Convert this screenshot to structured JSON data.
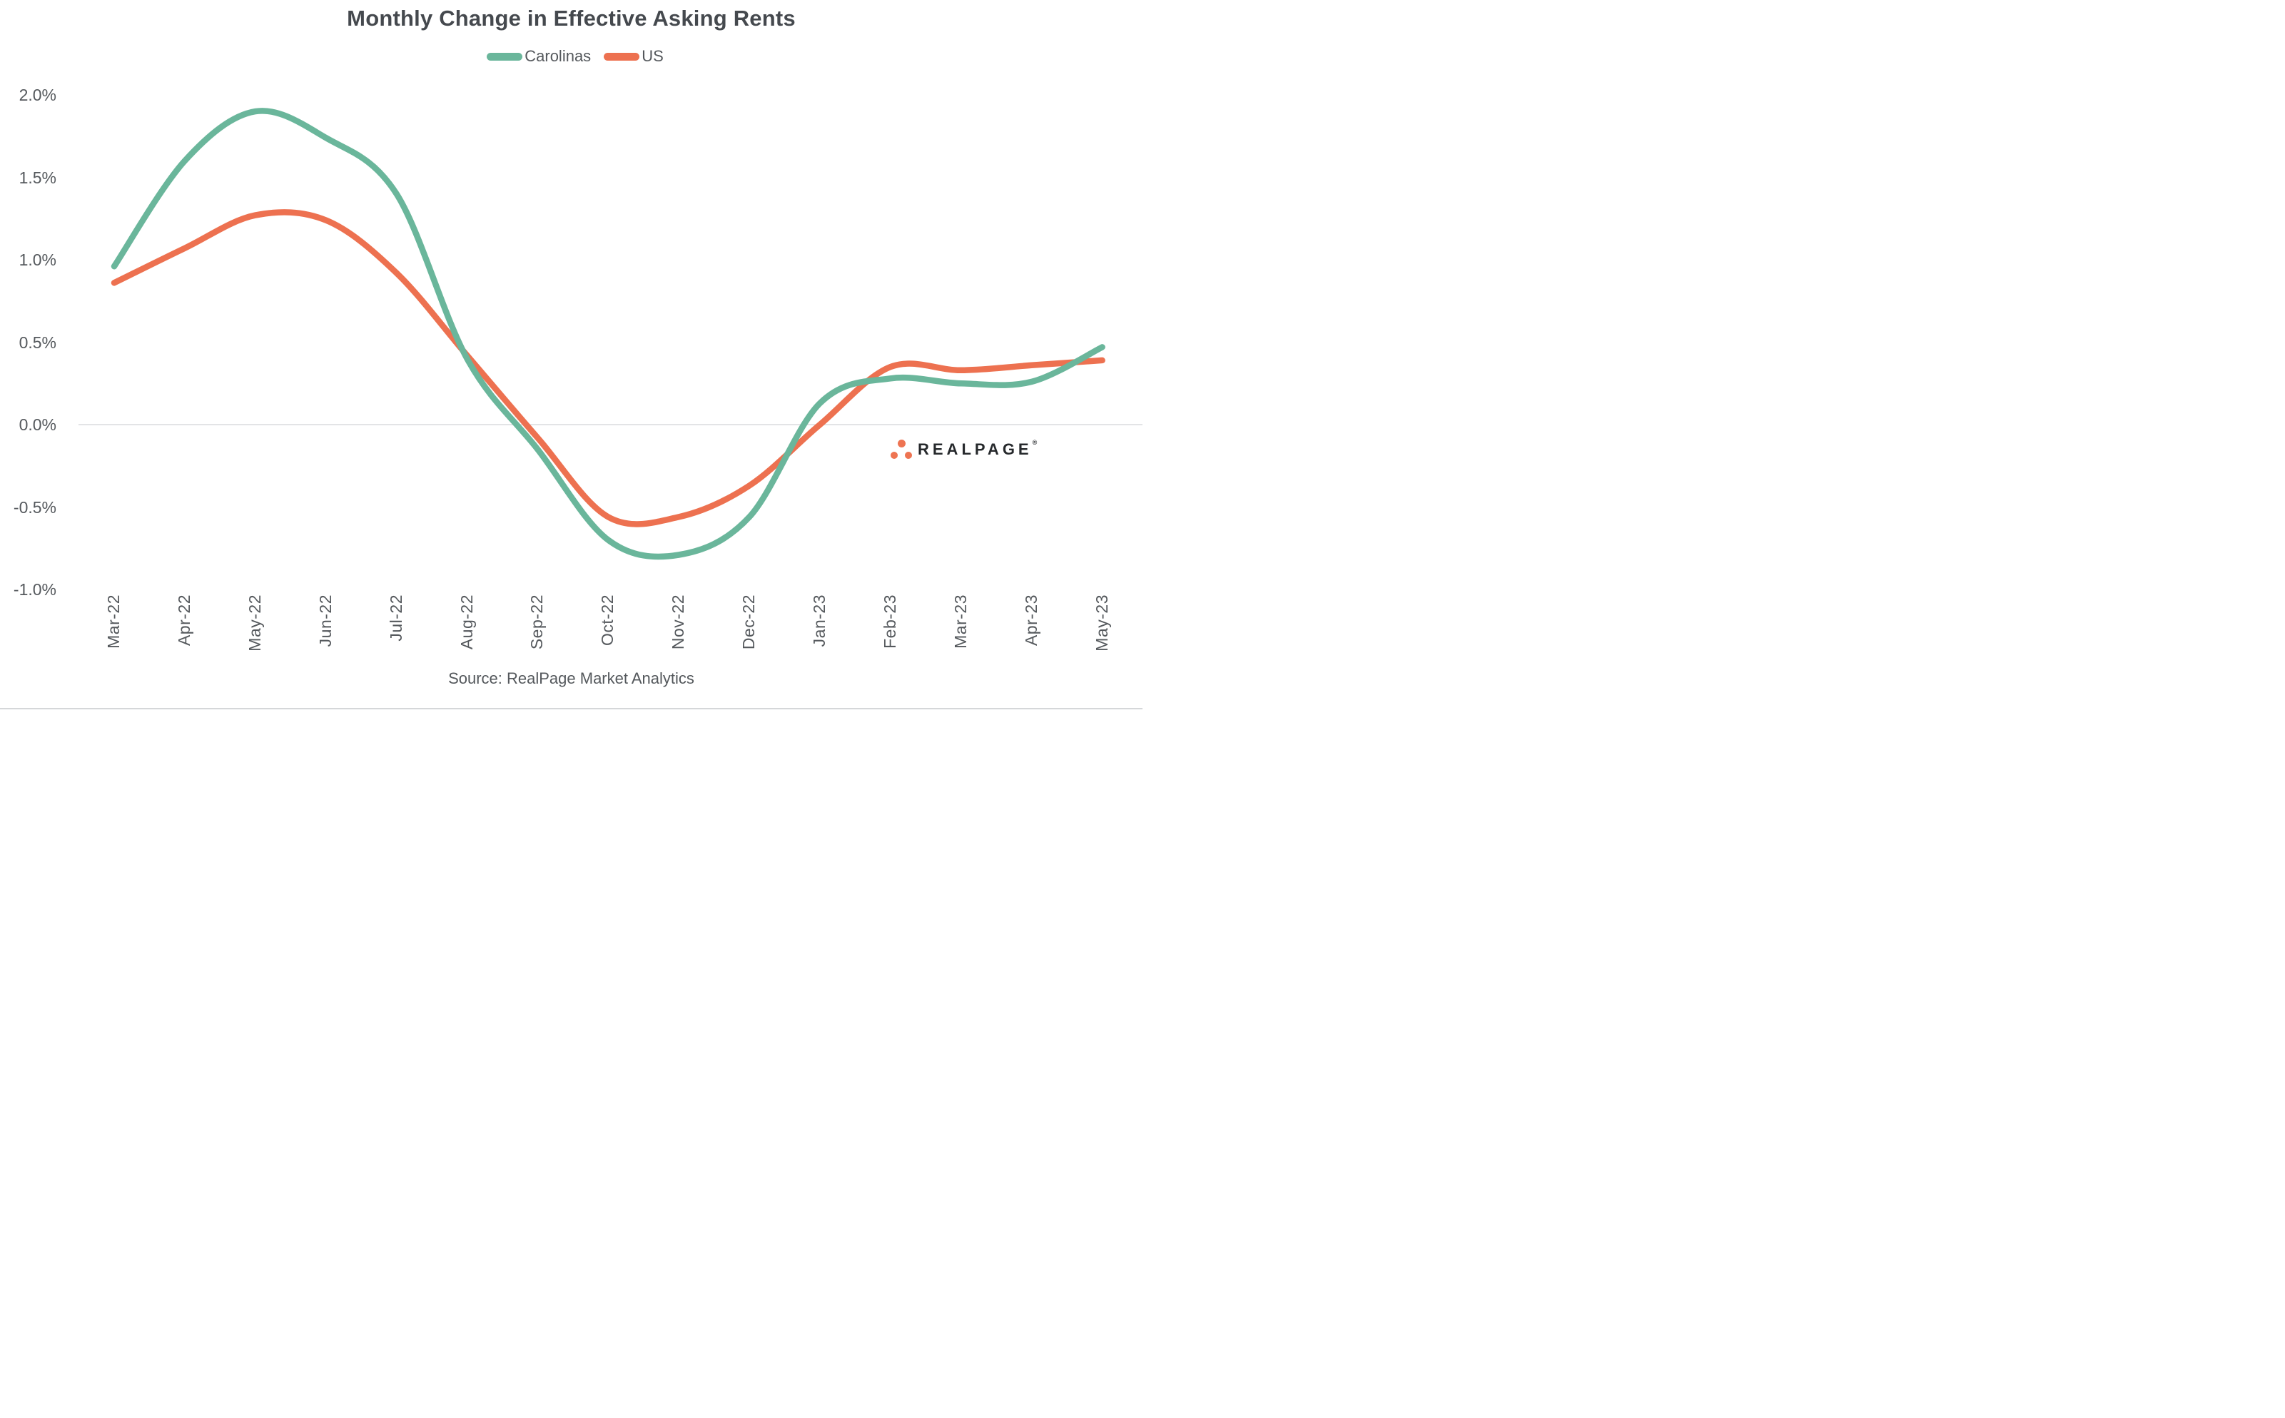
{
  "title": "Monthly Change in Effective Asking Rents",
  "legend": [
    {
      "label": "Carolinas",
      "color": "#6ab69b"
    },
    {
      "label": "US",
      "color": "#ed7150"
    }
  ],
  "source_note": "Source: RealPage Market Analytics",
  "watermark": {
    "brand": "REALPAGE",
    "registered_mark": "®",
    "dot_color": "#ee7452",
    "text_color": "#26292c"
  },
  "chart_data": {
    "type": "line",
    "title": "Monthly Change in Effective Asking Rents",
    "categories": [
      "Mar-22",
      "Apr-22",
      "May-22",
      "Jun-22",
      "Jul-22",
      "Aug-22",
      "Sep-22",
      "Oct-22",
      "Nov-22",
      "Dec-22",
      "Jan-23",
      "Feb-23",
      "Mar-23",
      "Apr-23",
      "May-23"
    ],
    "series": [
      {
        "name": "Carolinas",
        "color": "#6ab69b",
        "values": [
          0.96,
          1.6,
          1.9,
          1.74,
          1.4,
          0.4,
          -0.15,
          -0.7,
          -0.79,
          -0.56,
          0.13,
          0.28,
          0.25,
          0.26,
          0.47
        ]
      },
      {
        "name": "US",
        "color": "#ed7150",
        "values": [
          0.86,
          1.07,
          1.27,
          1.24,
          0.92,
          0.42,
          -0.08,
          -0.56,
          -0.56,
          -0.37,
          0.0,
          0.35,
          0.33,
          0.36,
          0.39
        ]
      }
    ],
    "xlabel": "",
    "ylabel": "",
    "y_ticks": [
      "2.0%",
      "1.5%",
      "1.0%",
      "0.5%",
      "0.0%",
      "-0.5%",
      "-1.0%"
    ],
    "y_tick_values": [
      2.0,
      1.5,
      1.0,
      0.5,
      0.0,
      -0.5,
      -1.0
    ],
    "ylim": [
      -1.0,
      2.0
    ],
    "grid": "zero-line-only",
    "zero_line_color": "#dadcdd",
    "legend_position": "top",
    "line_style": "smooth",
    "tick_label_color": "#55595d"
  }
}
